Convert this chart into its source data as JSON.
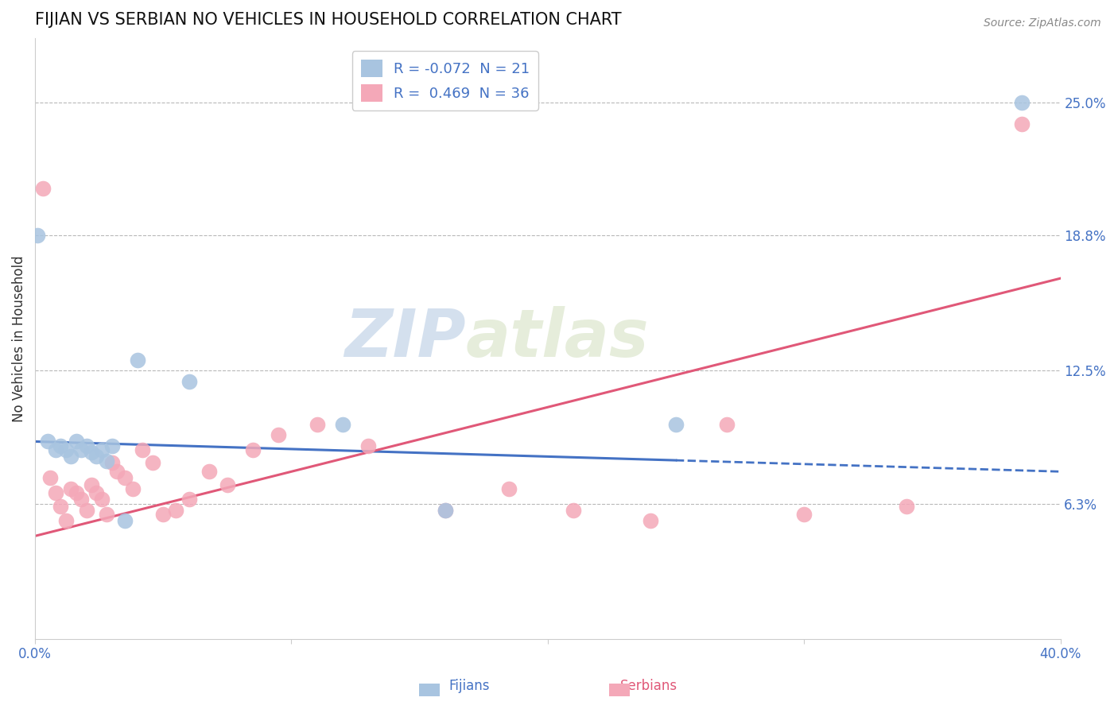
{
  "title": "FIJIAN VS SERBIAN NO VEHICLES IN HOUSEHOLD CORRELATION CHART",
  "source": "Source: ZipAtlas.com",
  "xlabel_fijians": "Fijians",
  "xlabel_serbians": "Serbians",
  "ylabel": "No Vehicles in Household",
  "xlim": [
    0.0,
    0.4
  ],
  "ylim": [
    0.0,
    0.28
  ],
  "xticks": [
    0.0,
    0.1,
    0.2,
    0.3,
    0.4
  ],
  "xticklabels": [
    "0.0%",
    "",
    "",
    "",
    "40.0%"
  ],
  "yticks_right": [
    0.063,
    0.125,
    0.188,
    0.25
  ],
  "yticklabels_right": [
    "6.3%",
    "12.5%",
    "18.8%",
    "25.0%"
  ],
  "grid_yticks": [
    0.063,
    0.125,
    0.188,
    0.25
  ],
  "fijian_color": "#a8c4e0",
  "serbian_color": "#f4a8b8",
  "fijian_line_color": "#4472c4",
  "serbian_line_color": "#e05878",
  "legend_R_fijian": "-0.072",
  "legend_N_fijian": "21",
  "legend_R_serbian": "0.469",
  "legend_N_serbian": "36",
  "watermark_zip": "ZIP",
  "watermark_atlas": "atlas",
  "fijian_x": [
    0.001,
    0.005,
    0.008,
    0.01,
    0.012,
    0.014,
    0.016,
    0.018,
    0.02,
    0.022,
    0.024,
    0.026,
    0.028,
    0.03,
    0.035,
    0.04,
    0.06,
    0.12,
    0.16,
    0.25,
    0.385
  ],
  "fijian_y": [
    0.188,
    0.092,
    0.088,
    0.09,
    0.088,
    0.085,
    0.092,
    0.088,
    0.09,
    0.087,
    0.085,
    0.088,
    0.083,
    0.09,
    0.055,
    0.13,
    0.12,
    0.1,
    0.06,
    0.1,
    0.25
  ],
  "serbian_x": [
    0.003,
    0.006,
    0.008,
    0.01,
    0.012,
    0.014,
    0.016,
    0.018,
    0.02,
    0.022,
    0.024,
    0.026,
    0.028,
    0.03,
    0.032,
    0.035,
    0.038,
    0.042,
    0.046,
    0.05,
    0.055,
    0.06,
    0.068,
    0.075,
    0.085,
    0.095,
    0.11,
    0.13,
    0.16,
    0.185,
    0.21,
    0.24,
    0.27,
    0.3,
    0.34,
    0.385
  ],
  "serbian_y": [
    0.21,
    0.075,
    0.068,
    0.062,
    0.055,
    0.07,
    0.068,
    0.065,
    0.06,
    0.072,
    0.068,
    0.065,
    0.058,
    0.082,
    0.078,
    0.075,
    0.07,
    0.088,
    0.082,
    0.058,
    0.06,
    0.065,
    0.078,
    0.072,
    0.088,
    0.095,
    0.1,
    0.09,
    0.06,
    0.07,
    0.06,
    0.055,
    0.1,
    0.058,
    0.062,
    0.24
  ],
  "fijian_line_x0": 0.0,
  "fijian_line_x_solid_end": 0.25,
  "fijian_line_x_dash_end": 0.4,
  "fijian_line_y0": 0.092,
  "fijian_line_slope": -0.035,
  "serbian_line_x0": 0.0,
  "serbian_line_x_end": 0.4,
  "serbian_line_y0": 0.048,
  "serbian_line_slope": 0.3
}
